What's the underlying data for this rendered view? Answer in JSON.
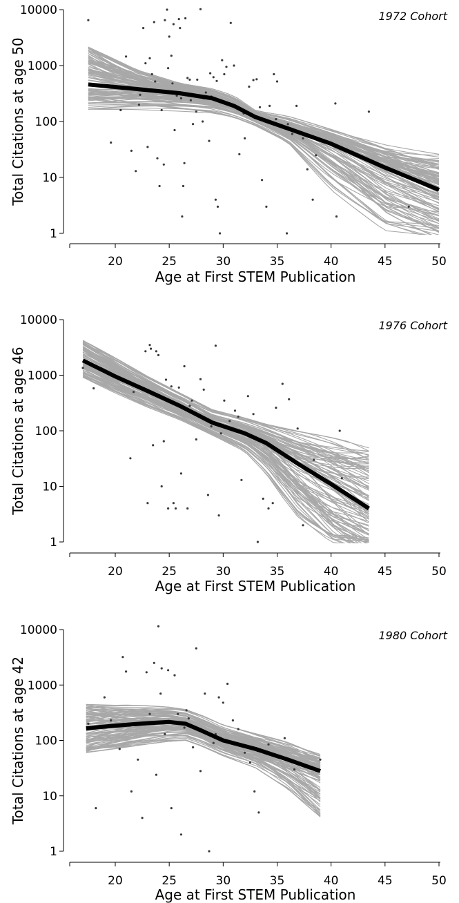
{
  "chart_data": [
    {
      "type": "scatter",
      "cohort_label": "1972 Cohort",
      "ylabel": "Total Citations at age 50",
      "xlabel": "Age at First STEM Publication",
      "x_scale": "linear",
      "y_scale": "log",
      "xlim": [
        16,
        50
      ],
      "ylim": [
        0.8,
        10000
      ],
      "xticks": [
        20,
        25,
        30,
        35,
        40,
        45,
        50
      ],
      "yticks": [
        1,
        10,
        100,
        1000,
        10000
      ],
      "ytick_labels": [
        "1",
        "10",
        "100",
        "1000",
        "10000"
      ],
      "xtick_labels": [
        "20",
        "25",
        "30",
        "35",
        "40",
        "45",
        "50"
      ],
      "grid": false,
      "fit_line": {
        "name": "",
        "x": [
          17.5,
          22,
          26,
          29,
          31,
          33,
          36,
          40,
          45,
          50
        ],
        "y": [
          460,
          380,
          320,
          260,
          190,
          120,
          75,
          40,
          15,
          6
        ]
      },
      "bootstrap_band": {
        "x_range": [
          17.5,
          50
        ],
        "upper": [
          2500,
          900,
          500,
          400,
          300,
          160,
          130,
          80,
          45,
          30
        ],
        "lower": [
          150,
          150,
          140,
          130,
          110,
          80,
          40,
          5,
          0.8,
          0.6
        ],
        "x": [
          17.5,
          22,
          26,
          29,
          31,
          33,
          36,
          40,
          45,
          50
        ]
      },
      "points": [
        [
          17.5,
          6500
        ],
        [
          21,
          1450
        ],
        [
          19.6,
          42
        ],
        [
          20.5,
          160
        ],
        [
          21.5,
          30
        ],
        [
          21.9,
          13
        ],
        [
          22.3,
          300
        ],
        [
          22.6,
          4700
        ],
        [
          23.0,
          35
        ],
        [
          23.2,
          1350
        ],
        [
          23.4,
          700
        ],
        [
          23.6,
          6000
        ],
        [
          23.9,
          22
        ],
        [
          24.1,
          7
        ],
        [
          24.3,
          160
        ],
        [
          24.5,
          17
        ],
        [
          24.6,
          6500
        ],
        [
          24.8,
          10000
        ],
        [
          25.0,
          3300
        ],
        [
          25.2,
          1500
        ],
        [
          25.4,
          5500
        ],
        [
          25.5,
          70
        ],
        [
          25.6,
          330
        ],
        [
          25.7,
          290
        ],
        [
          25.9,
          6800
        ],
        [
          26.0,
          4700
        ],
        [
          26.2,
          2
        ],
        [
          26.3,
          7
        ],
        [
          26.4,
          18
        ],
        [
          26.5,
          7000
        ],
        [
          26.7,
          600
        ],
        [
          26.9,
          560
        ],
        [
          27.2,
          90
        ],
        [
          27.5,
          150
        ],
        [
          27.9,
          10200
        ],
        [
          28.1,
          100
        ],
        [
          28.4,
          330
        ],
        [
          28.7,
          45
        ],
        [
          28.9,
          280
        ],
        [
          29.1,
          620
        ],
        [
          29.3,
          4
        ],
        [
          29.5,
          3
        ],
        [
          29.7,
          1
        ],
        [
          29.9,
          1250
        ],
        [
          30.3,
          950
        ],
        [
          30.7,
          5800
        ],
        [
          31.0,
          1000
        ],
        [
          31.5,
          26
        ],
        [
          32.0,
          50
        ],
        [
          32.4,
          420
        ],
        [
          32.8,
          550
        ],
        [
          33.1,
          570
        ],
        [
          33.6,
          9
        ],
        [
          34.0,
          3
        ],
        [
          34.3,
          190
        ],
        [
          34.7,
          700
        ],
        [
          35.0,
          520
        ],
        [
          35.4,
          85
        ],
        [
          35.9,
          1
        ],
        [
          36.4,
          60
        ],
        [
          36.8,
          190
        ],
        [
          37.4,
          50
        ],
        [
          37.8,
          14
        ],
        [
          38.3,
          4
        ],
        [
          38.6,
          25
        ],
        [
          40.5,
          2
        ],
        [
          40.4,
          210
        ],
        [
          43.5,
          150
        ],
        [
          47.2,
          3
        ],
        [
          36.0,
          90
        ],
        [
          34.9,
          110
        ],
        [
          31.9,
          140
        ],
        [
          30.1,
          700
        ],
        [
          28.2,
          260
        ],
        [
          27.0,
          240
        ],
        [
          26.1,
          260
        ],
        [
          24.9,
          900
        ],
        [
          23.7,
          520
        ],
        [
          22.8,
          1100
        ],
        [
          22.2,
          200
        ],
        [
          25.3,
          480
        ],
        [
          27.6,
          560
        ],
        [
          28.8,
          730
        ],
        [
          29.4,
          530
        ],
        [
          33.4,
          180
        ]
      ]
    },
    {
      "type": "scatter",
      "cohort_label": "1976 Cohort",
      "ylabel": "Total Citations at age 46",
      "xlabel": "Age at First STEM Publication",
      "x_scale": "linear",
      "y_scale": "log",
      "xlim": [
        16,
        50
      ],
      "ylim": [
        0.8,
        10000
      ],
      "xticks": [
        20,
        25,
        30,
        35,
        40,
        45,
        50
      ],
      "yticks": [
        1,
        10,
        100,
        1000,
        10000
      ],
      "ytick_labels": [
        "1",
        "10",
        "100",
        "1000",
        "10000"
      ],
      "xtick_labels": [
        "20",
        "25",
        "30",
        "35",
        "40",
        "45",
        "50"
      ],
      "grid": false,
      "fit_line": {
        "name": "",
        "x": [
          17,
          20,
          23,
          26,
          29,
          32,
          34,
          37,
          40,
          43.5
        ],
        "y": [
          1850,
          950,
          520,
          280,
          140,
          90,
          60,
          25,
          11,
          4
        ]
      },
      "bootstrap_band": {
        "x": [
          17,
          20,
          23,
          26,
          29,
          32,
          34,
          37,
          40,
          43.5
        ],
        "upper": [
          4600,
          2200,
          1000,
          500,
          250,
          180,
          140,
          110,
          90,
          65
        ],
        "lower": [
          850,
          450,
          250,
          150,
          80,
          40,
          15,
          2,
          0.6,
          0.5
        ]
      },
      "points": [
        [
          17.0,
          1350
        ],
        [
          18.0,
          580
        ],
        [
          21.4,
          32
        ],
        [
          21.7,
          500
        ],
        [
          22.8,
          2700
        ],
        [
          23.0,
          5
        ],
        [
          23.2,
          3500
        ],
        [
          23.5,
          55
        ],
        [
          23.8,
          2700
        ],
        [
          24.0,
          2300
        ],
        [
          24.3,
          10
        ],
        [
          24.5,
          65
        ],
        [
          24.7,
          830
        ],
        [
          24.9,
          4
        ],
        [
          25.2,
          630
        ],
        [
          25.4,
          5
        ],
        [
          25.6,
          4
        ],
        [
          25.9,
          600
        ],
        [
          26.1,
          17
        ],
        [
          26.4,
          1450
        ],
        [
          26.7,
          4
        ],
        [
          27.1,
          350
        ],
        [
          27.5,
          70
        ],
        [
          27.9,
          850
        ],
        [
          28.2,
          550
        ],
        [
          28.6,
          7
        ],
        [
          28.9,
          120
        ],
        [
          29.3,
          3400
        ],
        [
          29.6,
          3
        ],
        [
          30.1,
          350
        ],
        [
          30.6,
          150
        ],
        [
          31.1,
          230
        ],
        [
          31.7,
          13
        ],
        [
          32.3,
          420
        ],
        [
          32.8,
          200
        ],
        [
          33.2,
          1
        ],
        [
          33.7,
          6
        ],
        [
          34.2,
          4
        ],
        [
          34.6,
          5
        ],
        [
          34.9,
          260
        ],
        [
          35.5,
          700
        ],
        [
          36.1,
          370
        ],
        [
          36.9,
          110
        ],
        [
          37.4,
          2
        ],
        [
          38.4,
          30
        ],
        [
          40.8,
          100
        ],
        [
          41.0,
          14
        ],
        [
          23.3,
          3000
        ],
        [
          26.9,
          280
        ],
        [
          29.8,
          90
        ],
        [
          31.4,
          180
        ]
      ]
    },
    {
      "type": "scatter",
      "cohort_label": "1980 Cohort",
      "ylabel": "Total Citations at age 42",
      "xlabel": "Age at First STEM Publication",
      "x_scale": "linear",
      "y_scale": "log",
      "xlim": [
        16,
        50
      ],
      "ylim": [
        0.8,
        10000
      ],
      "xticks": [
        20,
        25,
        30,
        35,
        40,
        45,
        50
      ],
      "yticks": [
        1,
        10,
        100,
        1000,
        10000
      ],
      "ytick_labels": [
        "1",
        "10",
        "100",
        "1000",
        "10000"
      ],
      "xtick_labels": [
        "20",
        "25",
        "30",
        "35",
        "40",
        "45",
        "50"
      ],
      "grid": false,
      "fit_line": {
        "name": "",
        "x": [
          17.3,
          20,
          23,
          25,
          26.5,
          28,
          30,
          33,
          36,
          39
        ],
        "y": [
          165,
          185,
          205,
          215,
          200,
          150,
          100,
          70,
          45,
          28
        ]
      },
      "bootstrap_band": {
        "x": [
          17.3,
          20,
          23,
          25,
          26.5,
          28,
          30,
          33,
          36,
          39
        ],
        "upper": [
          520,
          480,
          450,
          420,
          380,
          300,
          200,
          140,
          100,
          60
        ],
        "lower": [
          55,
          65,
          80,
          90,
          95,
          75,
          50,
          30,
          12,
          3.5
        ]
      },
      "points": [
        [
          17.5,
          200
        ],
        [
          18.2,
          6
        ],
        [
          19.0,
          600
        ],
        [
          19.6,
          230
        ],
        [
          20.4,
          70
        ],
        [
          20.7,
          3200
        ],
        [
          21.0,
          1750
        ],
        [
          21.5,
          12
        ],
        [
          22.1,
          45
        ],
        [
          22.5,
          4
        ],
        [
          22.9,
          1700
        ],
        [
          23.2,
          300
        ],
        [
          23.6,
          2500
        ],
        [
          23.8,
          24
        ],
        [
          24.0,
          11500
        ],
        [
          24.3,
          2000
        ],
        [
          24.6,
          130
        ],
        [
          24.9,
          1850
        ],
        [
          25.2,
          6
        ],
        [
          25.5,
          1500
        ],
        [
          25.8,
          300
        ],
        [
          26.1,
          2
        ],
        [
          26.4,
          170
        ],
        [
          26.8,
          250
        ],
        [
          27.2,
          75
        ],
        [
          27.5,
          4600
        ],
        [
          27.9,
          28
        ],
        [
          28.3,
          700
        ],
        [
          28.7,
          1
        ],
        [
          29.1,
          90
        ],
        [
          29.6,
          600
        ],
        [
          30.0,
          480
        ],
        [
          30.4,
          1050
        ],
        [
          30.9,
          230
        ],
        [
          31.4,
          160
        ],
        [
          32.0,
          60
        ],
        [
          32.5,
          40
        ],
        [
          32.9,
          12
        ],
        [
          33.3,
          5
        ],
        [
          34.2,
          85
        ],
        [
          35.7,
          110
        ],
        [
          36.6,
          30
        ],
        [
          39.0,
          45
        ],
        [
          24.2,
          700
        ],
        [
          26.6,
          350
        ],
        [
          29.3,
          130
        ]
      ]
    }
  ]
}
